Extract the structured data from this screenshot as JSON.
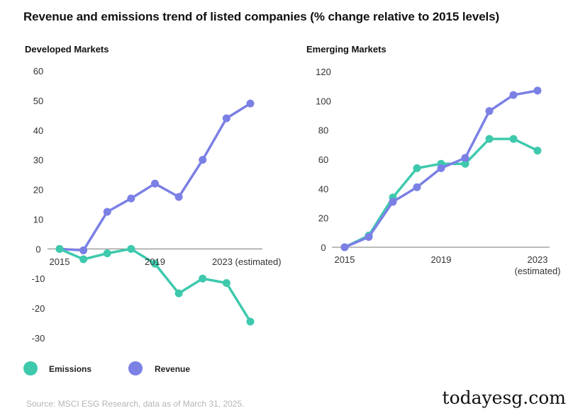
{
  "title": "Revenue and emissions trend of listed companies (% change relative to 2015 levels)",
  "colors": {
    "emissions": "#3ec9ad",
    "revenue": "#7b80e5",
    "axis": "#777777"
  },
  "legend": [
    {
      "name": "Emissions",
      "color": "#3ec9ad"
    },
    {
      "name": "Revenue",
      "color": "#7b80e5"
    }
  ],
  "source": "Source: MSCI ESG Research, data as of March 31, 2025.",
  "watermark": "todayesg.com",
  "chart_data": [
    {
      "type": "line",
      "title": "Developed Markets",
      "x": [
        2015,
        2016,
        2017,
        2018,
        2019,
        2020,
        2021,
        2022,
        2023
      ],
      "x_tick_labels": [
        {
          "x": 2015,
          "label": "2015"
        },
        {
          "x": 2019,
          "label": "2019"
        },
        {
          "x": 2023,
          "label": "2023 (estimated)"
        }
      ],
      "y_ticks": [
        60,
        50,
        40,
        30,
        20,
        10,
        0,
        -10,
        -20,
        -30
      ],
      "y_tick_labels": [
        "60",
        "50",
        "40",
        "30",
        "20",
        "10",
        "0",
        "-10",
        "-20",
        "-30"
      ],
      "ylim": [
        -30,
        60
      ],
      "series": [
        {
          "name": "Revenue",
          "values": [
            0,
            -0.5,
            12.5,
            17,
            22,
            17.5,
            30,
            44,
            49
          ]
        },
        {
          "name": "Emissions",
          "values": [
            0,
            -3.5,
            -1.5,
            0,
            -5,
            -15,
            -10,
            -11.5,
            -24.5
          ]
        }
      ]
    },
    {
      "type": "line",
      "title": "Emerging Markets",
      "x": [
        2015,
        2016,
        2017,
        2018,
        2019,
        2020,
        2021,
        2022,
        2023
      ],
      "x_tick_labels": [
        {
          "x": 2015,
          "label": "2015"
        },
        {
          "x": 2019,
          "label": "2019"
        },
        {
          "x": 2023,
          "label": "2023",
          "sublabel": "(estimated)"
        }
      ],
      "y_ticks": [
        120,
        100,
        80,
        60,
        40,
        20,
        0
      ],
      "y_tick_labels": [
        "120",
        "100",
        "80",
        "60",
        "40",
        "20",
        "0"
      ],
      "ylim": [
        0,
        120
      ],
      "series": [
        {
          "name": "Emissions",
          "values": [
            0,
            8,
            34,
            54,
            57,
            57,
            74,
            74,
            66
          ]
        },
        {
          "name": "Revenue",
          "values": [
            0,
            7,
            31,
            41,
            54,
            61,
            93,
            104,
            107
          ]
        }
      ]
    }
  ]
}
